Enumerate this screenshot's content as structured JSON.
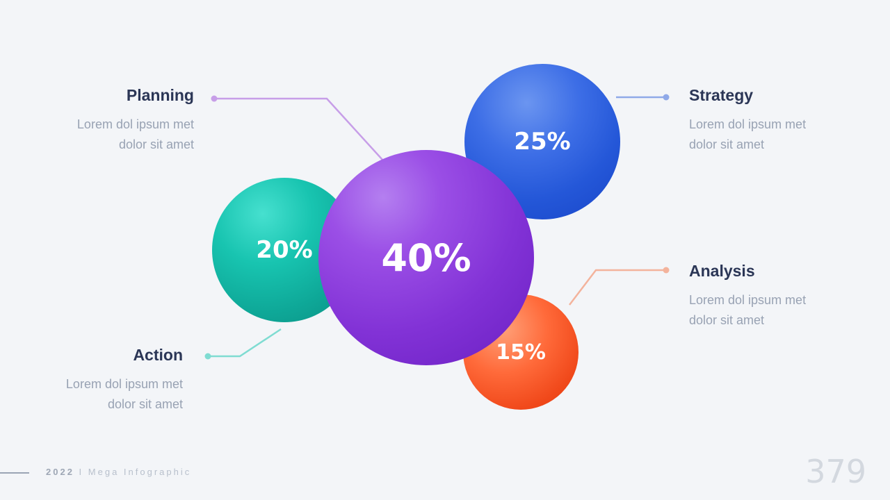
{
  "segments": [
    {
      "key": "planning",
      "title": "Planning",
      "value": "40%",
      "desc_line1": "Lorem dol ipsum met",
      "desc_line2": "dolor sit amet",
      "color": "#8a3ddc",
      "line_color": "#c79ee8"
    },
    {
      "key": "action",
      "title": "Action",
      "value": "20%",
      "desc_line1": "Lorem dol ipsum met",
      "desc_line2": "dolor sit amet",
      "color": "#14b8a6",
      "line_color": "#7fdcd2"
    },
    {
      "key": "strategy",
      "title": "Strategy",
      "value": "25%",
      "desc_line1": "Lorem dol ipsum met",
      "desc_line2": "dolor sit amet",
      "color": "#2a5ddc",
      "line_color": "#8fa9e8"
    },
    {
      "key": "analysis",
      "title": "Analysis",
      "value": "15%",
      "desc_line1": "Lorem dol ipsum met",
      "desc_line2": "dolor sit amet",
      "color": "#f0501e",
      "line_color": "#f3b39c"
    }
  ],
  "footer": {
    "year": "2022",
    "separator": "I",
    "title": "Mega Infographic"
  },
  "page_number": "379"
}
